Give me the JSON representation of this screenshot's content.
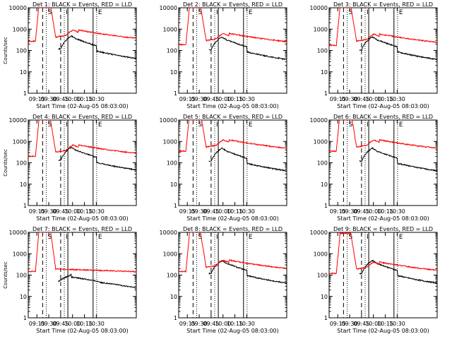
{
  "figure": {
    "colors": {
      "events": "#000000",
      "lld": "#ff0000",
      "axis": "#000000"
    }
  },
  "chart_data": [
    {
      "type": "line",
      "detector": 1,
      "title": "Det 1: BLACK = Events, RED = LLD",
      "xlabel": "Start Time (02-Aug-05 08:03:00)",
      "ylabel": "Counts/sec",
      "y_scale": "log",
      "ylim": [
        1,
        10000
      ],
      "xlim_minutes_from_start": [
        0,
        150
      ],
      "x_tick_labels": [
        "09:15",
        "09:30",
        "09:45",
        "10:00",
        "10:15",
        "10:30"
      ],
      "y_tick_labels": [
        "1",
        "10",
        "100",
        "1000",
        "10000"
      ],
      "markers": {
        "dashed": [
          20,
          45
        ],
        "solid": [
          55,
          90
        ],
        "dotted": [
          25,
          50,
          95
        ],
        "letters": [
          "S",
          "I",
          "E"
        ]
      },
      "series": [
        {
          "name": "Events",
          "color": "#000000",
          "profile": "events",
          "scale": 1.0
        },
        {
          "name": "LLD",
          "color": "#ff0000",
          "profile": "lld",
          "scale": 1.0
        }
      ]
    },
    {
      "type": "line",
      "detector": 2,
      "title": "Det 2: BLACK = Events, RED = LLD",
      "xlabel": "Start Time (02-Aug-05 08:03:00)",
      "ylabel": "",
      "y_scale": "log",
      "ylim": [
        1,
        10000
      ],
      "xlim_minutes_from_start": [
        0,
        150
      ],
      "x_tick_labels": [
        "09:15",
        "09:30",
        "09:45",
        "10:00",
        "10:15",
        "10:30"
      ],
      "y_tick_labels": [
        "1",
        "10",
        "100",
        "1000",
        "10000"
      ],
      "markers": {
        "dashed": [
          20,
          45
        ],
        "solid": [
          55,
          90
        ],
        "dotted": [
          25,
          50,
          95
        ],
        "letters": [
          "S",
          "I",
          "E"
        ]
      },
      "series": [
        {
          "name": "Events",
          "color": "#000000",
          "profile": "events",
          "scale": 0.9
        },
        {
          "name": "LLD",
          "color": "#ff0000",
          "profile": "lld",
          "scale": 0.7
        }
      ]
    },
    {
      "type": "line",
      "detector": 3,
      "title": "Det 3: BLACK = Events, RED = LLD",
      "xlabel": "Start Time (02-Aug-05 08:03:00)",
      "ylabel": "",
      "y_scale": "log",
      "ylim": [
        1,
        10000
      ],
      "xlim_minutes_from_start": [
        0,
        150
      ],
      "x_tick_labels": [
        "09:15",
        "09:30",
        "09:45",
        "10:00",
        "10:15",
        "10:30"
      ],
      "y_tick_labels": [
        "1",
        "10",
        "100",
        "1000",
        "10000"
      ],
      "markers": {
        "dashed": [
          20,
          45
        ],
        "solid": [
          55,
          90
        ],
        "dotted": [
          25,
          50,
          95
        ],
        "letters": [
          "S",
          "I",
          "E"
        ]
      },
      "series": [
        {
          "name": "Events",
          "color": "#000000",
          "profile": "events",
          "scale": 0.9
        },
        {
          "name": "LLD",
          "color": "#ff0000",
          "profile": "lld",
          "scale": 0.65
        }
      ]
    },
    {
      "type": "line",
      "detector": 4,
      "title": "Det 4: BLACK = Events, RED = LLD",
      "xlabel": "Start Time (02-Aug-05 08:03:00)",
      "ylabel": "Counts/sec",
      "y_scale": "log",
      "ylim": [
        1,
        10000
      ],
      "xlim_minutes_from_start": [
        0,
        150
      ],
      "x_tick_labels": [
        "09:15",
        "09:30",
        "09:45",
        "10:00",
        "10:15",
        "10:30"
      ],
      "y_tick_labels": [
        "1",
        "10",
        "100",
        "1000",
        "10000"
      ],
      "markers": {
        "dashed": [
          20,
          45
        ],
        "solid": [
          55,
          90
        ],
        "dotted": [
          25,
          50,
          95
        ],
        "letters": [
          "S",
          "I",
          "E"
        ]
      },
      "series": [
        {
          "name": "Events",
          "color": "#000000",
          "profile": "events",
          "scale": 1.1
        },
        {
          "name": "LLD",
          "color": "#ff0000",
          "profile": "lld",
          "scale": 0.75
        }
      ]
    },
    {
      "type": "line",
      "detector": 5,
      "title": "Det 5: BLACK = Events, RED = LLD",
      "xlabel": "Start Time (02-Aug-05 08:03:00)",
      "ylabel": "",
      "y_scale": "log",
      "ylim": [
        1,
        10000
      ],
      "xlim_minutes_from_start": [
        0,
        150
      ],
      "x_tick_labels": [
        "09:15",
        "09:30",
        "09:45",
        "10:00",
        "10:15",
        "10:30"
      ],
      "y_tick_labels": [
        "1",
        "10",
        "100",
        "1000",
        "10000"
      ],
      "markers": {
        "dashed": [
          20,
          45
        ],
        "solid": [
          55,
          90
        ],
        "dotted": [
          25,
          50,
          95
        ],
        "letters": [
          "S",
          "I",
          "E"
        ]
      },
      "series": [
        {
          "name": "Events",
          "color": "#000000",
          "profile": "events",
          "scale": 1.0
        },
        {
          "name": "LLD",
          "color": "#ff0000",
          "profile": "lld",
          "scale": 1.3
        }
      ]
    },
    {
      "type": "line",
      "detector": 6,
      "title": "Det 6: BLACK = Events, RED = LLD",
      "xlabel": "Start Time (02-Aug-05 08:03:00)",
      "ylabel": "",
      "y_scale": "log",
      "ylim": [
        1,
        10000
      ],
      "xlim_minutes_from_start": [
        0,
        150
      ],
      "x_tick_labels": [
        "09:15",
        "09:30",
        "09:45",
        "10:00",
        "10:15",
        "10:30"
      ],
      "y_tick_labels": [
        "1",
        "10",
        "100",
        "1000",
        "10000"
      ],
      "markers": {
        "dashed": [
          20,
          45
        ],
        "solid": [
          55,
          90
        ],
        "dotted": [
          25,
          50,
          95
        ],
        "letters": [
          "S",
          "I",
          "E"
        ]
      },
      "series": [
        {
          "name": "Events",
          "color": "#000000",
          "profile": "events",
          "scale": 1.0
        },
        {
          "name": "LLD",
          "color": "#ff0000",
          "profile": "lld",
          "scale": 1.3
        }
      ]
    },
    {
      "type": "line",
      "detector": 7,
      "title": "Det 7: BLACK = Events, RED = LLD",
      "xlabel": "Start Time (02-Aug-05 08:03:00)",
      "ylabel": "Counts/sec",
      "y_scale": "log",
      "ylim": [
        1,
        10000
      ],
      "xlim_minutes_from_start": [
        0,
        150
      ],
      "x_tick_labels": [
        "09:15",
        "09:30",
        "09:45",
        "10:00",
        "10:15",
        "10:30"
      ],
      "y_tick_labels": [
        "1",
        "10",
        "100",
        "1000",
        "10000"
      ],
      "markers": {
        "dashed": [
          20,
          45
        ],
        "solid": [
          55,
          90
        ],
        "dotted": [
          25,
          50,
          95
        ],
        "letters": [
          "S",
          "I",
          "E"
        ]
      },
      "series": [
        {
          "name": "Events",
          "color": "#000000",
          "profile": "events7",
          "scale": 1.0
        },
        {
          "name": "LLD",
          "color": "#ff0000",
          "profile": "lld7",
          "scale": 1.0
        }
      ]
    },
    {
      "type": "line",
      "detector": 8,
      "title": "Det 8: BLACK = Events, RED = LLD",
      "xlabel": "Start Time (02-Aug-05 08:03:00)",
      "ylabel": "",
      "y_scale": "log",
      "ylim": [
        1,
        10000
      ],
      "xlim_minutes_from_start": [
        0,
        150
      ],
      "x_tick_labels": [
        "09:15",
        "09:30",
        "09:45",
        "10:00",
        "10:15",
        "10:30"
      ],
      "y_tick_labels": [
        "1",
        "10",
        "100",
        "1000",
        "10000"
      ],
      "markers": {
        "dashed": [
          20,
          45
        ],
        "solid": [
          55,
          90
        ],
        "dotted": [
          25,
          50,
          95
        ],
        "letters": [
          "S",
          "I",
          "E"
        ]
      },
      "series": [
        {
          "name": "Events",
          "color": "#000000",
          "profile": "events",
          "scale": 1.0
        },
        {
          "name": "LLD",
          "color": "#ff0000",
          "profile": "lld",
          "scale": 0.55
        }
      ]
    },
    {
      "type": "line",
      "detector": 9,
      "title": "Det 9: BLACK = Events, RED = LLD",
      "xlabel": "Start Time (02-Aug-05 08:03:00)",
      "ylabel": "",
      "y_scale": "log",
      "ylim": [
        1,
        10000
      ],
      "xlim_minutes_from_start": [
        0,
        150
      ],
      "x_tick_labels": [
        "09:15",
        "09:30",
        "09:45",
        "10:00",
        "10:15",
        "10:30"
      ],
      "y_tick_labels": [
        "1",
        "10",
        "100",
        "1000",
        "10000"
      ],
      "markers": {
        "dashed": [
          20,
          45
        ],
        "solid": [
          55,
          90
        ],
        "dotted": [
          25,
          50,
          95
        ],
        "letters": [
          "S",
          "I",
          "E"
        ]
      },
      "series": [
        {
          "name": "Events",
          "color": "#000000",
          "profile": "events",
          "scale": 1.0
        },
        {
          "name": "LLD",
          "color": "#ff0000",
          "profile": "lld",
          "scale": 0.45
        }
      ]
    }
  ]
}
